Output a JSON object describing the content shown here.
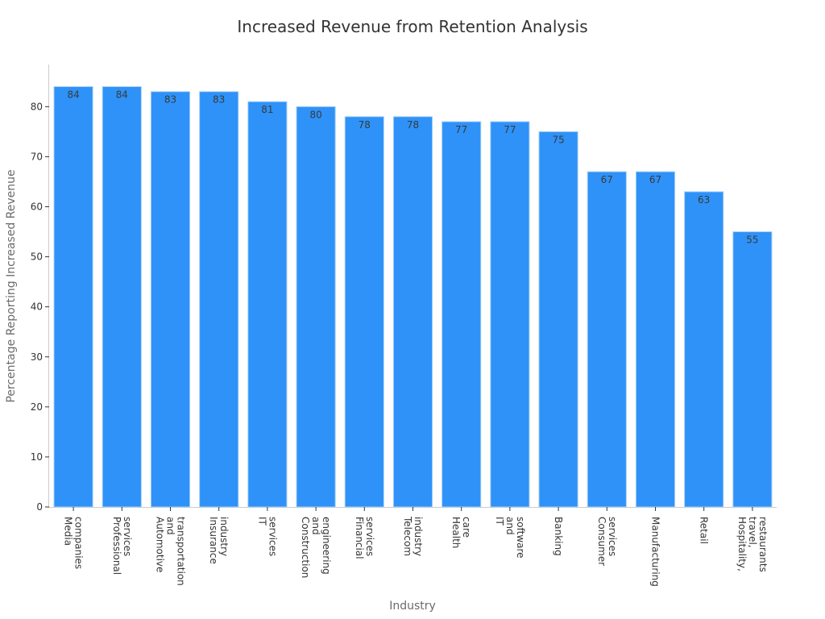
{
  "chart_data": {
    "type": "bar",
    "title": "Increased Revenue from Retention Analysis",
    "xlabel": "Industry",
    "ylabel": "Percentage Reporting Increased Revenue",
    "categories": [
      "Media companies",
      "Professional services",
      "Automotive and transportation",
      "Insurance industry",
      "IT services",
      "Construction and engineering",
      "Financial services",
      "Telecom industry",
      "Health care",
      "IT and software",
      "Banking",
      "Consumer services",
      "Manufacturing",
      "Retail",
      "Hospitality, travel, restaurants"
    ],
    "values": [
      84,
      84,
      83,
      83,
      81,
      80,
      78,
      78,
      77,
      77,
      75,
      67,
      67,
      63,
      55
    ],
    "ylim": [
      0,
      88
    ],
    "yticks": [
      0,
      10,
      20,
      30,
      40,
      50,
      60,
      70,
      80
    ],
    "grid": false,
    "bar_color": "#2e92f8",
    "data_labels": true
  }
}
